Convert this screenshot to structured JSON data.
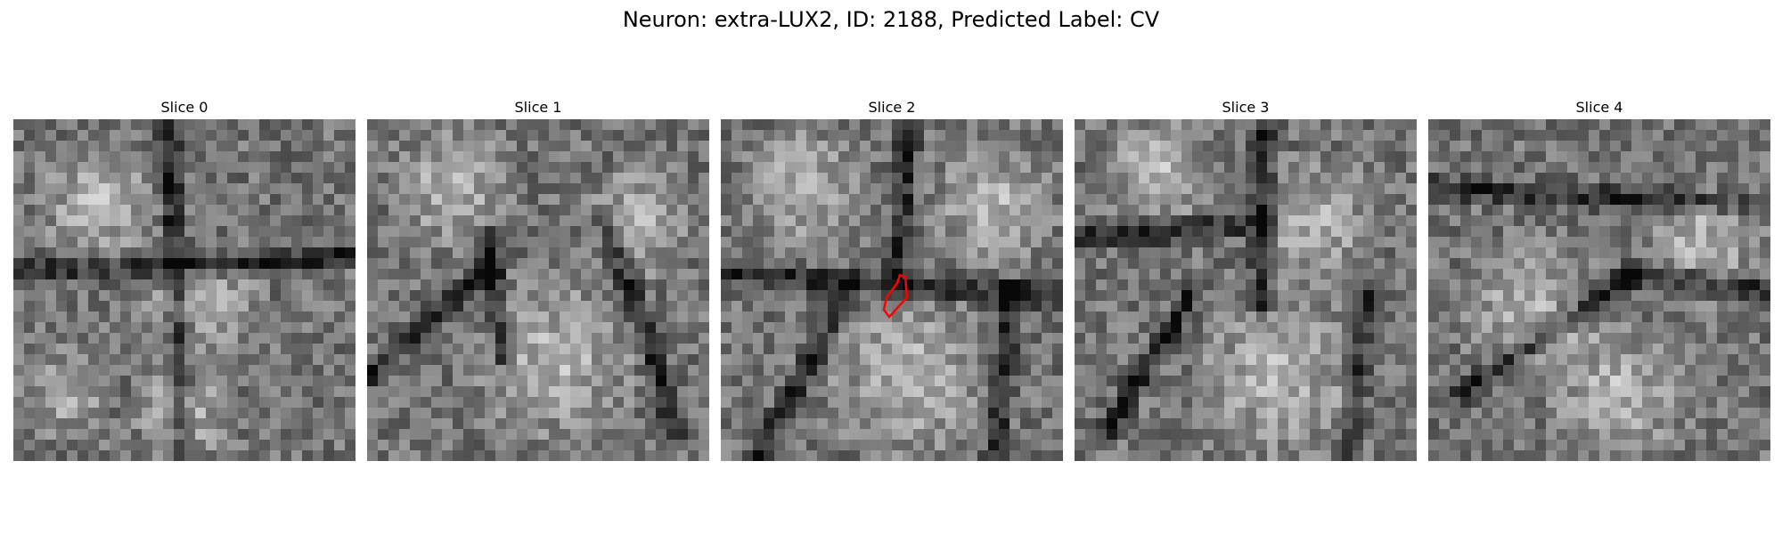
{
  "figure": {
    "title": "Neuron: extra-LUX2, ID: 2188, Predicted Label: CV",
    "panels": [
      {
        "title": "Slice 0",
        "seed": 11,
        "highlight": false
      },
      {
        "title": "Slice 1",
        "seed": 23,
        "highlight": false
      },
      {
        "title": "Slice 2",
        "seed": 37,
        "highlight": true
      },
      {
        "title": "Slice 3",
        "seed": 41,
        "highlight": false
      },
      {
        "title": "Slice 4",
        "seed": 53,
        "highlight": false
      }
    ],
    "grid_cells": 32,
    "highlight_color": "#ff0000"
  }
}
